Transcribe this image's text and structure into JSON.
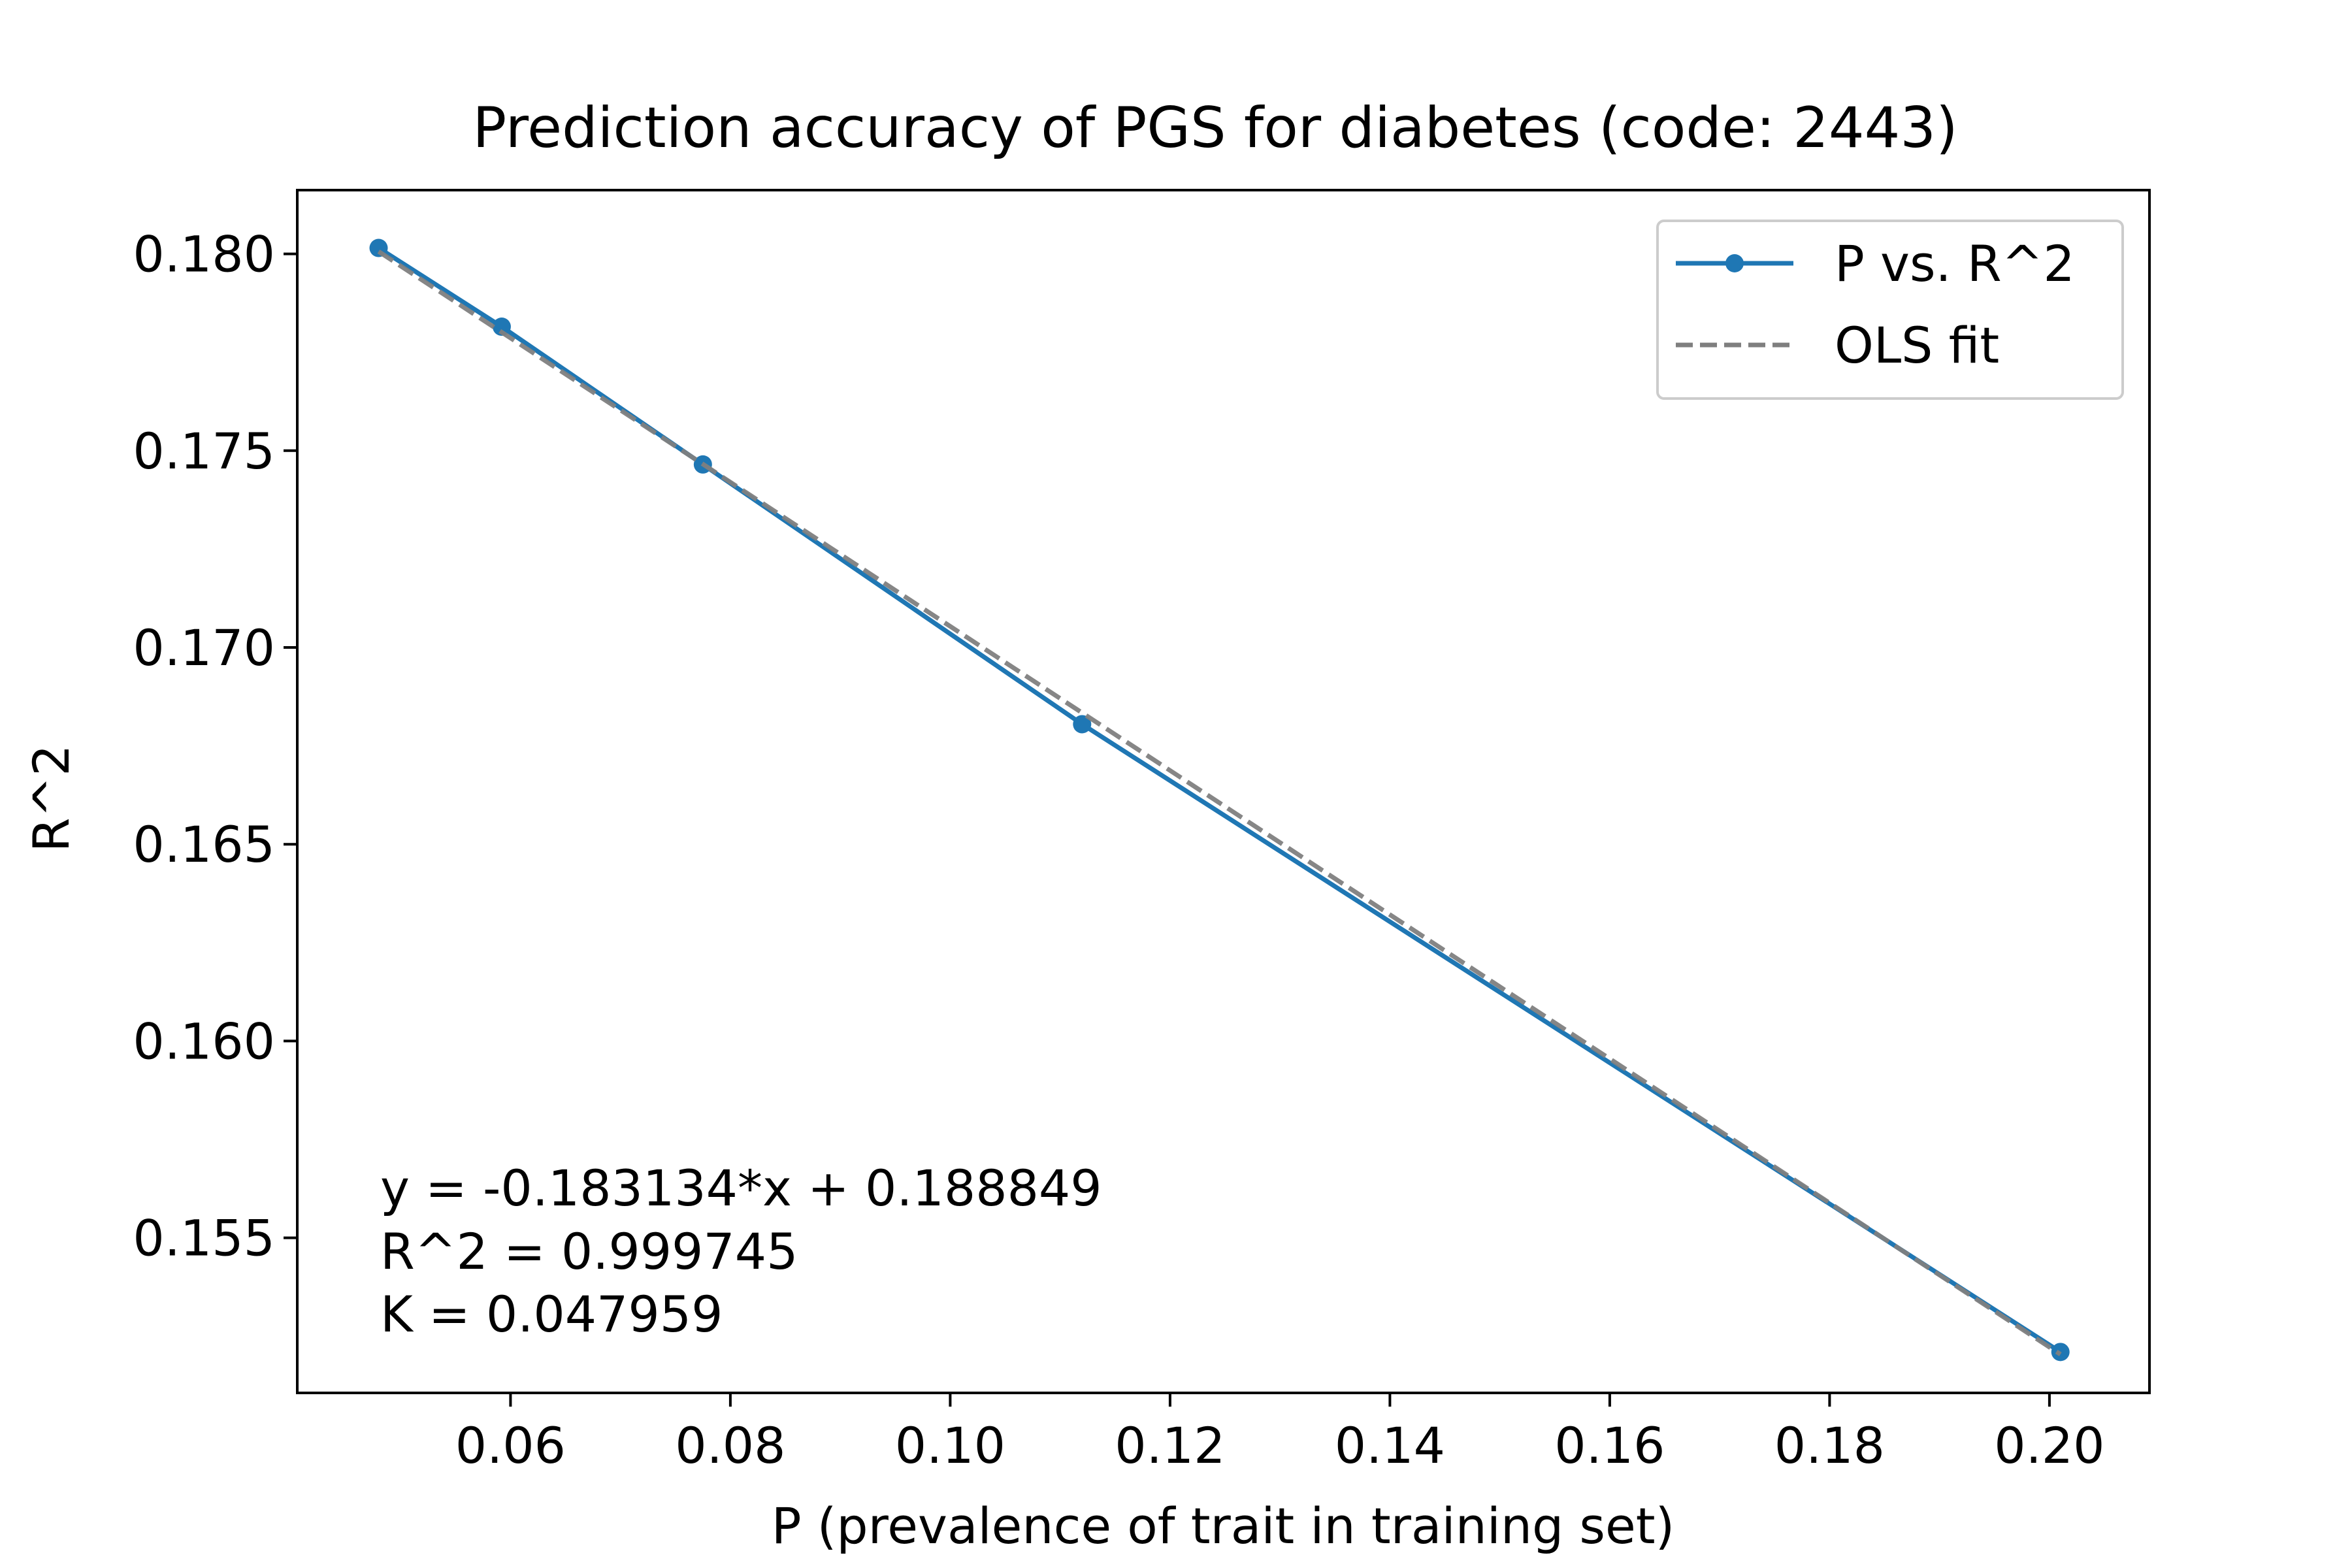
{
  "chart_data": {
    "type": "line",
    "title": "Prediction accuracy of PGS for diabetes (code: 2443)",
    "xlabel": "P (prevalence of trait in training set)",
    "ylabel": "R^2",
    "xlim": [
      0.0406,
      0.2091
    ],
    "ylim": [
      0.15106,
      0.18162
    ],
    "xticks": [
      0.06,
      0.08,
      0.1,
      0.12,
      0.14,
      0.16,
      0.18,
      0.2
    ],
    "xtick_labels": [
      "0.06",
      "0.08",
      "0.10",
      "0.12",
      "0.14",
      "0.16",
      "0.18",
      "0.20"
    ],
    "yticks": [
      0.155,
      0.16,
      0.165,
      0.17,
      0.175,
      0.18
    ],
    "ytick_labels": [
      "0.155",
      "0.160",
      "0.165",
      "0.170",
      "0.175",
      "0.180"
    ],
    "grid": false,
    "legend_position": "top-right",
    "series": [
      {
        "name": "P vs. R^2",
        "style": "solid-with-markers",
        "color": "#1f77b4",
        "x": [
          0.048,
          0.0592,
          0.0775,
          0.112,
          0.201
        ],
        "y": [
          0.18015,
          0.17815,
          0.17465,
          0.16805,
          0.1521
        ]
      },
      {
        "name": "OLS fit",
        "style": "dashed",
        "color": "#7f7f7f",
        "slope": -0.183134,
        "intercept": 0.188849,
        "x": [
          0.048,
          0.201
        ],
        "y": [
          0.18006,
          0.15204
        ]
      }
    ],
    "annotations": [
      "y = -0.183134*x + 0.188849",
      "R^2 = 0.999745",
      "K = 0.047959"
    ]
  }
}
